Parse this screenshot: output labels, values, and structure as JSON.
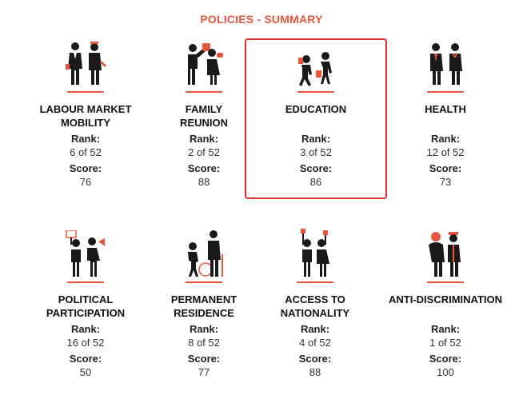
{
  "header": {
    "title": "POLICIES - SUMMARY"
  },
  "labels": {
    "rank": "Rank:",
    "score": "Score:"
  },
  "colors": {
    "accent": "#e8553b",
    "selected_border": "#e0322b",
    "figure": "#1a1a1a"
  },
  "policies": [
    {
      "title_line1": "LABOUR MARKET",
      "title_line2": "MOBILITY",
      "rank": "6 of 52",
      "score": "76",
      "icon": "workers-icon"
    },
    {
      "title_line1": "FAMILY",
      "title_line2": "REUNION",
      "rank": "2 of 52",
      "score": "88",
      "icon": "family-icon"
    },
    {
      "title_line1": "EDUCATION",
      "title_line2": "",
      "rank": "3 of 52",
      "score": "86",
      "icon": "students-icon",
      "selected": true
    },
    {
      "title_line1": "HEALTH",
      "title_line2": "",
      "rank": "12 of 52",
      "score": "73",
      "icon": "doctors-icon"
    },
    {
      "title_line1": "POLITICAL",
      "title_line2": "PARTICIPATION",
      "rank": "16 of 52",
      "score": "50",
      "icon": "protest-icon"
    },
    {
      "title_line1": "PERMANENT",
      "title_line2": "RESIDENCE",
      "rank": "8 of 52",
      "score": "77",
      "icon": "residents-icon"
    },
    {
      "title_line1": "ACCESS TO",
      "title_line2": "NATIONALITY",
      "rank": "4 of 52",
      "score": "88",
      "icon": "voters-icon"
    },
    {
      "title_line1": "ANTI-DISCRIMINATION",
      "title_line2": "",
      "rank": "1 of 52",
      "score": "100",
      "icon": "equality-icon"
    }
  ]
}
